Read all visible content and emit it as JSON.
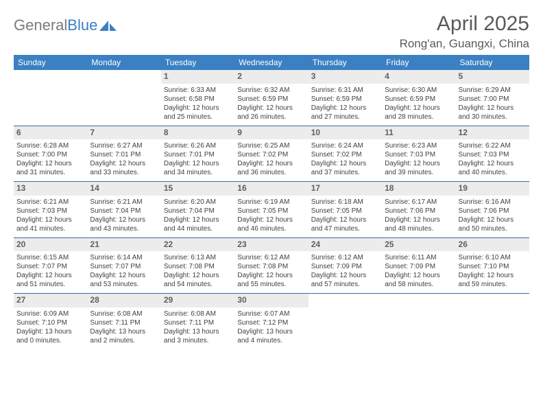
{
  "logo": {
    "text_gray": "General",
    "text_blue": "Blue"
  },
  "title": "April 2025",
  "location": "Rong'an, Guangxi, China",
  "colors": {
    "header_bar": "#3a80c3",
    "header_text": "#ffffff",
    "daynum_bg": "#ececec",
    "daynum_text": "#606060",
    "body_text": "#404040",
    "rule": "#3a6a9a"
  },
  "days_of_week": [
    "Sunday",
    "Monday",
    "Tuesday",
    "Wednesday",
    "Thursday",
    "Friday",
    "Saturday"
  ],
  "weeks": [
    [
      null,
      null,
      {
        "n": "1",
        "sr": "6:33 AM",
        "ss": "6:58 PM",
        "dl": "12 hours and 25 minutes."
      },
      {
        "n": "2",
        "sr": "6:32 AM",
        "ss": "6:59 PM",
        "dl": "12 hours and 26 minutes."
      },
      {
        "n": "3",
        "sr": "6:31 AM",
        "ss": "6:59 PM",
        "dl": "12 hours and 27 minutes."
      },
      {
        "n": "4",
        "sr": "6:30 AM",
        "ss": "6:59 PM",
        "dl": "12 hours and 28 minutes."
      },
      {
        "n": "5",
        "sr": "6:29 AM",
        "ss": "7:00 PM",
        "dl": "12 hours and 30 minutes."
      }
    ],
    [
      {
        "n": "6",
        "sr": "6:28 AM",
        "ss": "7:00 PM",
        "dl": "12 hours and 31 minutes."
      },
      {
        "n": "7",
        "sr": "6:27 AM",
        "ss": "7:01 PM",
        "dl": "12 hours and 33 minutes."
      },
      {
        "n": "8",
        "sr": "6:26 AM",
        "ss": "7:01 PM",
        "dl": "12 hours and 34 minutes."
      },
      {
        "n": "9",
        "sr": "6:25 AM",
        "ss": "7:02 PM",
        "dl": "12 hours and 36 minutes."
      },
      {
        "n": "10",
        "sr": "6:24 AM",
        "ss": "7:02 PM",
        "dl": "12 hours and 37 minutes."
      },
      {
        "n": "11",
        "sr": "6:23 AM",
        "ss": "7:03 PM",
        "dl": "12 hours and 39 minutes."
      },
      {
        "n": "12",
        "sr": "6:22 AM",
        "ss": "7:03 PM",
        "dl": "12 hours and 40 minutes."
      }
    ],
    [
      {
        "n": "13",
        "sr": "6:21 AM",
        "ss": "7:03 PM",
        "dl": "12 hours and 41 minutes."
      },
      {
        "n": "14",
        "sr": "6:21 AM",
        "ss": "7:04 PM",
        "dl": "12 hours and 43 minutes."
      },
      {
        "n": "15",
        "sr": "6:20 AM",
        "ss": "7:04 PM",
        "dl": "12 hours and 44 minutes."
      },
      {
        "n": "16",
        "sr": "6:19 AM",
        "ss": "7:05 PM",
        "dl": "12 hours and 46 minutes."
      },
      {
        "n": "17",
        "sr": "6:18 AM",
        "ss": "7:05 PM",
        "dl": "12 hours and 47 minutes."
      },
      {
        "n": "18",
        "sr": "6:17 AM",
        "ss": "7:06 PM",
        "dl": "12 hours and 48 minutes."
      },
      {
        "n": "19",
        "sr": "6:16 AM",
        "ss": "7:06 PM",
        "dl": "12 hours and 50 minutes."
      }
    ],
    [
      {
        "n": "20",
        "sr": "6:15 AM",
        "ss": "7:07 PM",
        "dl": "12 hours and 51 minutes."
      },
      {
        "n": "21",
        "sr": "6:14 AM",
        "ss": "7:07 PM",
        "dl": "12 hours and 53 minutes."
      },
      {
        "n": "22",
        "sr": "6:13 AM",
        "ss": "7:08 PM",
        "dl": "12 hours and 54 minutes."
      },
      {
        "n": "23",
        "sr": "6:12 AM",
        "ss": "7:08 PM",
        "dl": "12 hours and 55 minutes."
      },
      {
        "n": "24",
        "sr": "6:12 AM",
        "ss": "7:09 PM",
        "dl": "12 hours and 57 minutes."
      },
      {
        "n": "25",
        "sr": "6:11 AM",
        "ss": "7:09 PM",
        "dl": "12 hours and 58 minutes."
      },
      {
        "n": "26",
        "sr": "6:10 AM",
        "ss": "7:10 PM",
        "dl": "12 hours and 59 minutes."
      }
    ],
    [
      {
        "n": "27",
        "sr": "6:09 AM",
        "ss": "7:10 PM",
        "dl": "13 hours and 0 minutes."
      },
      {
        "n": "28",
        "sr": "6:08 AM",
        "ss": "7:11 PM",
        "dl": "13 hours and 2 minutes."
      },
      {
        "n": "29",
        "sr": "6:08 AM",
        "ss": "7:11 PM",
        "dl": "13 hours and 3 minutes."
      },
      {
        "n": "30",
        "sr": "6:07 AM",
        "ss": "7:12 PM",
        "dl": "13 hours and 4 minutes."
      },
      null,
      null,
      null
    ]
  ],
  "labels": {
    "sunrise": "Sunrise: ",
    "sunset": "Sunset: ",
    "daylight": "Daylight: "
  }
}
